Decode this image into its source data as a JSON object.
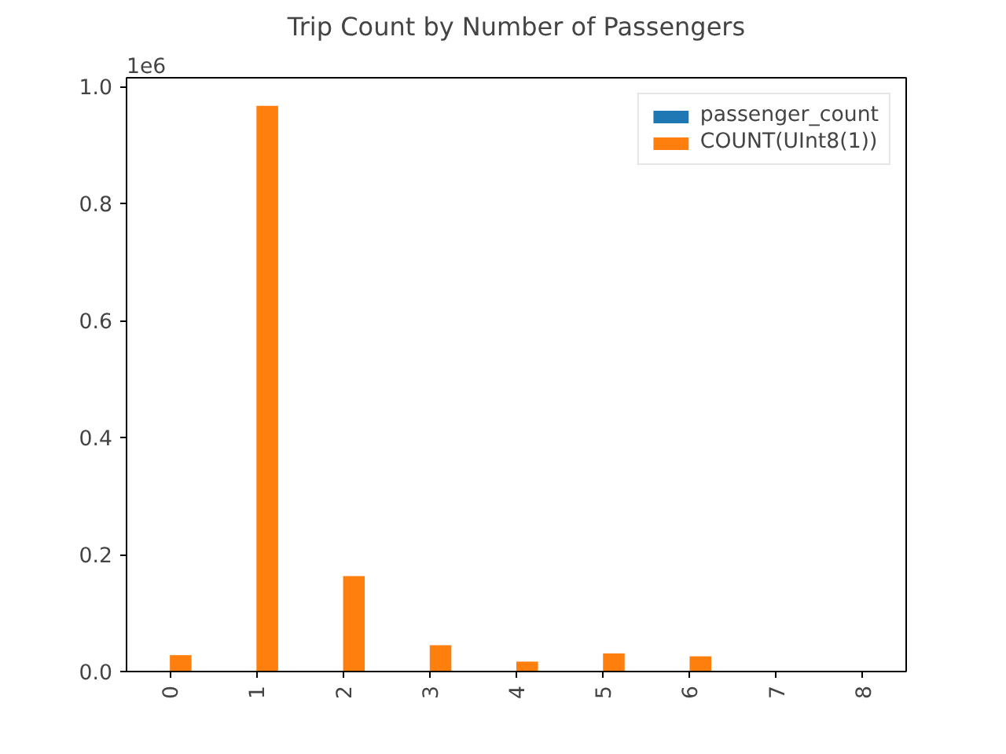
{
  "chart_data": {
    "type": "bar",
    "title": "Trip Count by Number of Passengers",
    "categories": [
      "0",
      "1",
      "2",
      "3",
      "4",
      "5",
      "6",
      "7",
      "8"
    ],
    "series": [
      {
        "name": "passenger_count",
        "color": "#1f77b4",
        "values": [
          0,
          0,
          0,
          0,
          0,
          0,
          0,
          0,
          0
        ]
      },
      {
        "name": "COUNT(UInt8(1))",
        "color": "#ff7f0e",
        "values": [
          0.028,
          0.967,
          0.163,
          0.045,
          0.017,
          0.031,
          0.026,
          0,
          0
        ]
      }
    ],
    "ylim": [
      0,
      1.015
    ],
    "yticks": [
      {
        "value": 0,
        "label": "0.0"
      },
      {
        "value": 0.2,
        "label": "0.2"
      },
      {
        "value": 0.4,
        "label": "0.4"
      },
      {
        "value": 0.6,
        "label": "0.6"
      },
      {
        "value": 0.8,
        "label": "0.8"
      },
      {
        "value": 1.0,
        "label": "1.0"
      }
    ],
    "annotations": [
      "1e6"
    ],
    "grid": false,
    "legend": "top right"
  }
}
